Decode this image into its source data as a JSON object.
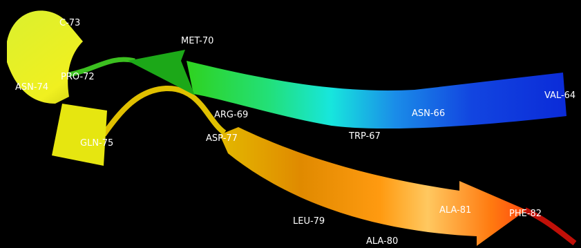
{
  "labels": [
    "C-73",
    "MET-70",
    "PRO-72",
    "ASN-74",
    "ARG-69",
    "ASP-77",
    "GLN-75",
    "TRP-67",
    "ASN-66",
    "VAL-64",
    "LEU-79",
    "ALA-80",
    "ALA-81",
    "PHE-82"
  ]
}
